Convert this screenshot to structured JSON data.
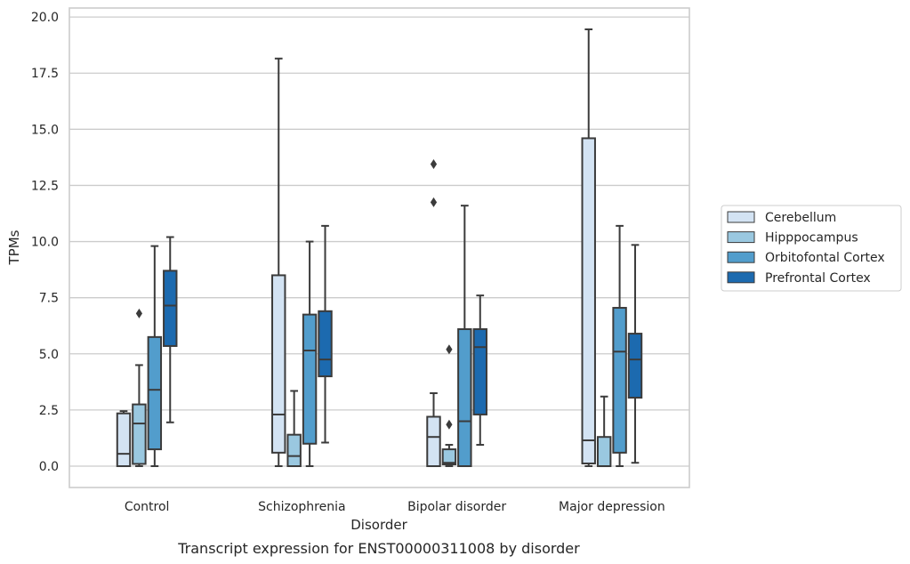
{
  "caption": "Transcript expression for ENST00000311008 by disorder",
  "chart_data": {
    "type": "box",
    "xlabel": "Disorder",
    "ylabel": "TPMs",
    "ylim": [
      -0.95,
      20.4
    ],
    "yticks": [
      0.0,
      2.5,
      5.0,
      7.5,
      10.0,
      12.5,
      15.0,
      17.5,
      20.0
    ],
    "ytick_labels": [
      "0.0",
      "2.5",
      "5.0",
      "7.5",
      "10.0",
      "12.5",
      "15.0",
      "17.5",
      "20.0"
    ],
    "grid": "horizontal",
    "legend_position": "right",
    "categories": [
      "Control",
      "Schizophrenia",
      "Bipolar disorder",
      "Major depression"
    ],
    "series": [
      {
        "name": "Cerebellum",
        "color": "#d3e3f3",
        "boxes": [
          {
            "whislo": 0.0,
            "q1": 0.0,
            "med": 0.55,
            "q3": 2.35,
            "whishi": 2.45,
            "fliers": []
          },
          {
            "whislo": 0.0,
            "q1": 0.6,
            "med": 2.3,
            "q3": 8.5,
            "whishi": 18.15,
            "fliers": []
          },
          {
            "whislo": 0.0,
            "q1": 0.0,
            "med": 1.3,
            "q3": 2.2,
            "whishi": 3.25,
            "fliers": [
              11.75,
              13.45
            ]
          },
          {
            "whislo": 0.0,
            "q1": 0.12,
            "med": 1.15,
            "q3": 14.6,
            "whishi": 19.45,
            "fliers": []
          }
        ]
      },
      {
        "name": "Hipppocampus",
        "color": "#9ac8e0",
        "boxes": [
          {
            "whislo": 0.0,
            "q1": 0.1,
            "med": 1.9,
            "q3": 2.75,
            "whishi": 4.5,
            "fliers": [
              6.8
            ]
          },
          {
            "whislo": 0.0,
            "q1": 0.0,
            "med": 0.45,
            "q3": 1.4,
            "whishi": 3.35,
            "fliers": []
          },
          {
            "whislo": 0.0,
            "q1": 0.08,
            "med": 0.15,
            "q3": 0.75,
            "whishi": 0.95,
            "fliers": [
              1.85,
              5.2
            ]
          },
          {
            "whislo": 0.0,
            "q1": 0.0,
            "med": 0.0,
            "q3": 1.3,
            "whishi": 3.1,
            "fliers": []
          }
        ]
      },
      {
        "name": "Orbitofontal Cortex",
        "color": "#529dcc",
        "boxes": [
          {
            "whislo": 0.0,
            "q1": 0.75,
            "med": 3.4,
            "q3": 5.75,
            "whishi": 9.8,
            "fliers": []
          },
          {
            "whislo": 0.0,
            "q1": 1.0,
            "med": 5.15,
            "q3": 6.75,
            "whishi": 10.0,
            "fliers": []
          },
          {
            "whislo": 0.0,
            "q1": 0.0,
            "med": 2.0,
            "q3": 6.1,
            "whishi": 11.6,
            "fliers": []
          },
          {
            "whislo": 0.0,
            "q1": 0.6,
            "med": 5.1,
            "q3": 7.05,
            "whishi": 10.7,
            "fliers": []
          }
        ]
      },
      {
        "name": "Prefrontal Cortex",
        "color": "#1c6aaf",
        "boxes": [
          {
            "whislo": 1.95,
            "q1": 5.35,
            "med": 7.15,
            "q3": 8.7,
            "whishi": 10.2,
            "fliers": []
          },
          {
            "whislo": 1.05,
            "q1": 4.0,
            "med": 4.75,
            "q3": 6.9,
            "whishi": 10.7,
            "fliers": []
          },
          {
            "whislo": 0.95,
            "q1": 2.3,
            "med": 5.3,
            "q3": 6.1,
            "whishi": 7.6,
            "fliers": []
          },
          {
            "whislo": 0.15,
            "q1": 3.05,
            "med": 4.75,
            "q3": 5.9,
            "whishi": 9.85,
            "fliers": []
          }
        ]
      }
    ]
  }
}
